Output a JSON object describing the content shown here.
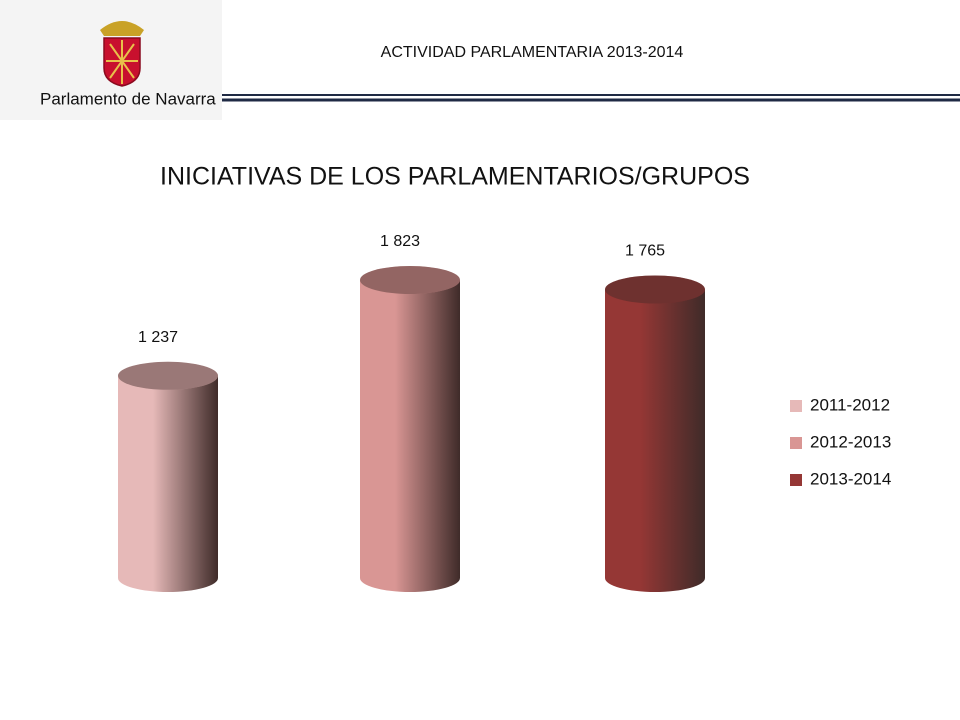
{
  "header": {
    "title": "ACTIVIDAD PARLAMENTARIA 2013-2014",
    "logo_text": "Parlamento de Navarra"
  },
  "chart_data": {
    "type": "bar",
    "title": "INICIATIVAS DE LOS PARLAMENTARIOS/GRUPOS",
    "series": [
      {
        "name": "2011-2012",
        "color": "#e6b9b8",
        "values": [
          1237
        ],
        "value_labels": [
          "1 237"
        ]
      },
      {
        "name": "2012-2013",
        "color": "#d99694",
        "values": [
          1823
        ],
        "value_labels": [
          "1 823"
        ]
      },
      {
        "name": "2013-2014",
        "color": "#953735",
        "values": [
          1765
        ],
        "value_labels": [
          "1 765"
        ]
      }
    ],
    "legend": "right"
  }
}
